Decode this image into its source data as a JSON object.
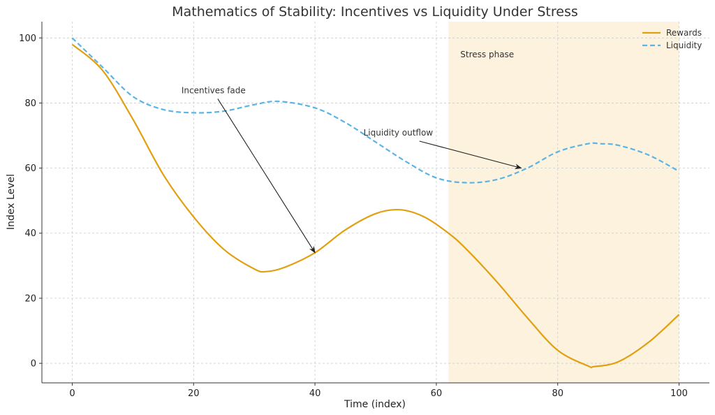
{
  "chart_data": {
    "type": "line",
    "title": "Mathematics of Stability: Incentives vs Liquidity Under Stress",
    "xlabel": "Time (index)",
    "ylabel": "Index Level",
    "xlim": [
      -5,
      105
    ],
    "ylim": [
      -6,
      105
    ],
    "xticks": [
      0,
      20,
      40,
      60,
      80,
      100
    ],
    "yticks": [
      0,
      20,
      40,
      60,
      80,
      100
    ],
    "grid": true,
    "legend_position": "top-right",
    "shaded_region": {
      "x_start": 62,
      "x_end": 100,
      "label": "Stress phase",
      "color": "#fcf2de"
    },
    "annotations": [
      {
        "text": "Incentives fade",
        "text_x": 18,
        "text_y": 83,
        "target_x": 40,
        "target_y": 34
      },
      {
        "text": "Liquidity outflow",
        "text_x": 48,
        "text_y": 70,
        "target_x": 74,
        "target_y": 60
      }
    ],
    "series": [
      {
        "name": "Rewards",
        "color": "#e0a010",
        "style": "solid",
        "x": [
          0,
          5,
          10,
          15,
          20,
          25,
          30,
          32,
          35,
          40,
          45,
          50,
          54,
          58,
          62,
          65,
          70,
          75,
          80,
          85,
          86,
          90,
          95,
          100
        ],
        "y": [
          98,
          90,
          75,
          58,
          45,
          35,
          29,
          28.2,
          29.5,
          34,
          41,
          46,
          47.2,
          45,
          40,
          35,
          25,
          14,
          4,
          -0.8,
          -1,
          0.5,
          6.5,
          15
        ]
      },
      {
        "name": "Liquidity",
        "color": "#5ab4e5",
        "style": "dashed",
        "x": [
          0,
          5,
          10,
          15,
          20,
          25,
          30,
          34,
          40,
          45,
          50,
          55,
          60,
          65,
          70,
          75,
          80,
          85,
          87,
          90,
          95,
          100
        ],
        "y": [
          100,
          91,
          82,
          78,
          77,
          77.5,
          79.5,
          80.5,
          78.5,
          74,
          68,
          62,
          57,
          55.5,
          56.5,
          60,
          65,
          67.5,
          67.5,
          67,
          64,
          59
        ]
      }
    ]
  }
}
